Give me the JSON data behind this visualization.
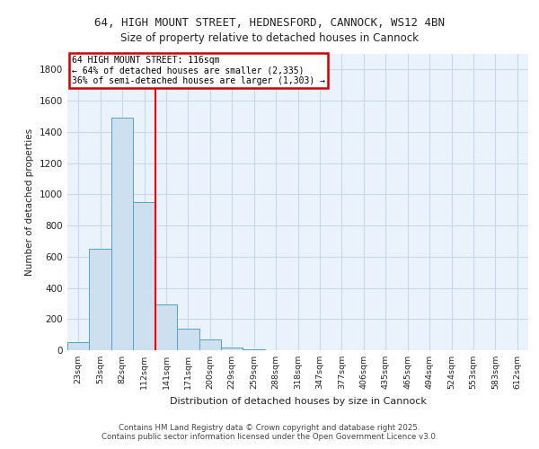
{
  "title_line1": "64, HIGH MOUNT STREET, HEDNESFORD, CANNOCK, WS12 4BN",
  "title_line2": "Size of property relative to detached houses in Cannock",
  "xlabel": "Distribution of detached houses by size in Cannock",
  "ylabel": "Number of detached properties",
  "bin_labels": [
    "23sqm",
    "53sqm",
    "82sqm",
    "112sqm",
    "141sqm",
    "171sqm",
    "200sqm",
    "229sqm",
    "259sqm",
    "288sqm",
    "318sqm",
    "347sqm",
    "377sqm",
    "406sqm",
    "435sqm",
    "465sqm",
    "494sqm",
    "524sqm",
    "553sqm",
    "583sqm",
    "612sqm"
  ],
  "bar_values": [
    50,
    650,
    1490,
    950,
    295,
    140,
    70,
    20,
    5,
    2,
    1,
    0,
    0,
    0,
    0,
    0,
    0,
    0,
    0,
    0,
    0
  ],
  "bar_color": "#cce0f0",
  "bar_edge_color": "#5a9fc0",
  "grid_color": "#c8d8e8",
  "background_color": "#eaf3fb",
  "red_line_x": 3.5,
  "annotation_text": "64 HIGH MOUNT STREET: 116sqm\n← 64% of detached houses are smaller (2,335)\n36% of semi-detached houses are larger (1,303) →",
  "annotation_box_color": "#ffffff",
  "annotation_box_edge": "#cc0000",
  "ylim": [
    0,
    1900
  ],
  "yticks": [
    0,
    200,
    400,
    600,
    800,
    1000,
    1200,
    1400,
    1600,
    1800
  ],
  "footer_line1": "Contains HM Land Registry data © Crown copyright and database right 2025.",
  "footer_line2": "Contains public sector information licensed under the Open Government Licence v3.0."
}
